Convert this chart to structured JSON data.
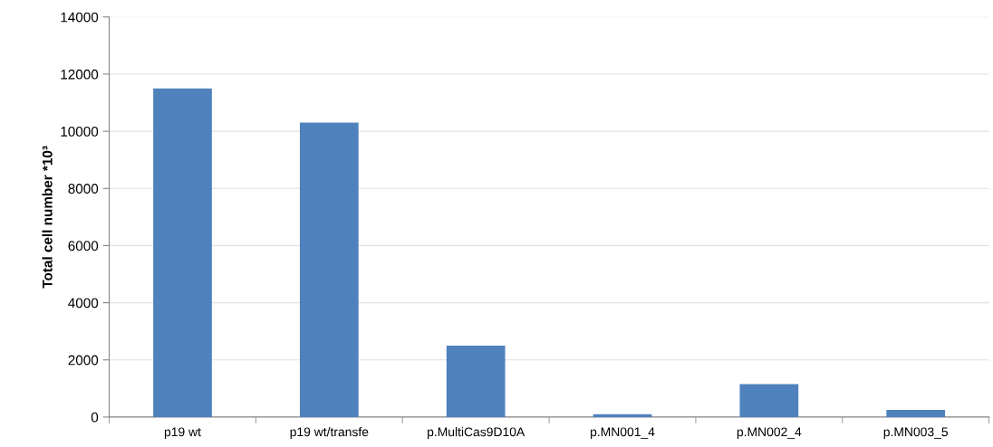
{
  "chart_data": {
    "type": "bar",
    "ylabel": "Total cell number *10³",
    "categories": [
      "p19 wt",
      "p19 wt/transfe",
      "p.MultiCas9D10A",
      "p.MN001_4",
      "p.MN002_4",
      "p.MN003_5"
    ],
    "values": [
      11500,
      10300,
      2500,
      100,
      1150,
      250
    ],
    "color": "#4f81bd",
    "ylim": [
      0,
      14000
    ],
    "yticks": [
      0,
      2000,
      4000,
      6000,
      8000,
      10000,
      12000,
      14000
    ],
    "grid": "y"
  }
}
